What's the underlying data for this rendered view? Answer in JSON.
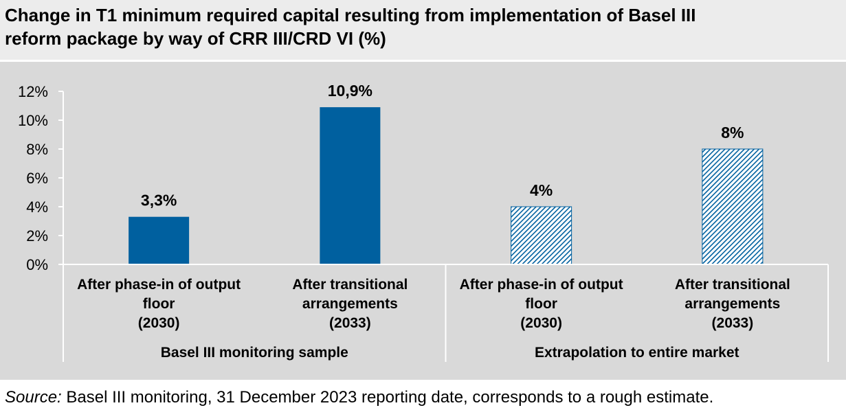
{
  "title": {
    "line1": "Change in T1 minimum required capital resulting from implementation of Basel III",
    "line2": "reform package by way of CRR III/CRD VI (%)"
  },
  "source": {
    "label": "Source:",
    "text": "Basel III monitoring, 31 December 2023 reporting date, corresponds to a rough estimate."
  },
  "colors": {
    "bar": "#00609f",
    "background": "#d9d9d9",
    "title_background": "#ececec",
    "axis": "#ffffff"
  },
  "chart_data": {
    "type": "bar",
    "ylim": [
      0,
      12
    ],
    "yticks": [
      "0%",
      "2%",
      "4%",
      "6%",
      "8%",
      "10%",
      "12%"
    ],
    "grid": false,
    "legend": "none",
    "categories": [
      [
        "After phase-in of output",
        "floor",
        "(2030)"
      ],
      [
        "After transitional",
        "arrangements",
        "(2033)"
      ],
      [
        "After phase-in of output",
        "floor",
        "(2030)"
      ],
      [
        "After transitional",
        "arrangements",
        "(2033)"
      ]
    ],
    "groups": [
      "Basel III monitoring sample",
      "Extrapolation to entire market"
    ],
    "values": [
      3.3,
      10.9,
      4,
      8
    ],
    "data_labels": [
      "3,3%",
      "10,9%",
      "4%",
      "8%"
    ],
    "patterns": [
      "solid",
      "solid",
      "hatched",
      "hatched"
    ]
  }
}
